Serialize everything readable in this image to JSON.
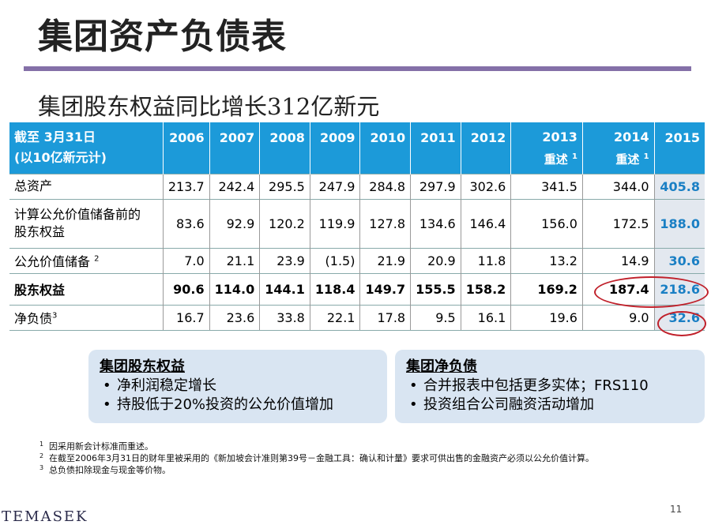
{
  "title": "集团资产负债表",
  "subtitle": "集团股东权益同比增长312亿新元",
  "table": {
    "header_label_line1": "截至 3月31日",
    "header_label_line2": "(以10亿新元计)",
    "years": [
      "2006",
      "2007",
      "2008",
      "2009",
      "2010",
      "2011",
      "2012",
      "2013",
      "2014",
      "2015"
    ],
    "restated_label": "重述",
    "restated_note": "1",
    "rows": [
      {
        "label": [
          "总资产"
        ],
        "values": [
          "213.7",
          "242.4",
          "295.5",
          "247.9",
          "284.8",
          "297.9",
          "302.6",
          "341.5",
          "344.0",
          "405.8"
        ]
      },
      {
        "label": [
          "计算公允价值储备前的",
          "股东权益"
        ],
        "values": [
          "83.6",
          "92.9",
          "120.2",
          "119.9",
          "127.8",
          "134.6",
          "146.4",
          "156.0",
          "172.5",
          "188.0"
        ]
      },
      {
        "label": [
          "公允价值储备"
        ],
        "note": "2",
        "values": [
          "7.0",
          "21.1",
          "23.9",
          "(1.5)",
          "21.9",
          "20.9",
          "11.8",
          "13.2",
          "14.9",
          "30.6"
        ]
      },
      {
        "label": [
          "股东权益"
        ],
        "values": [
          "90.6",
          "114.0",
          "144.1",
          "118.4",
          "149.7",
          "155.5",
          "158.2",
          "169.2",
          "187.4",
          "218.6"
        ]
      },
      {
        "label": [
          "净负债"
        ],
        "note": "3",
        "values": [
          "16.7",
          "23.6",
          "33.8",
          "22.1",
          "17.8",
          "9.5",
          "16.1",
          "19.6",
          "9.0",
          "32.6"
        ]
      }
    ]
  },
  "boxes": {
    "left": {
      "title": "集团股东权益",
      "items": [
        "净利润稳定增长",
        "持股低于20%投资的公允价值增加"
      ]
    },
    "right": {
      "title": "集团净负债",
      "items": [
        "合并报表中包括更多实体；FRS110",
        "投资组合公司融资活动增加"
      ]
    }
  },
  "footnotes": [
    {
      "n": "1",
      "text": "因采用新会计标准而重述。"
    },
    {
      "n": "2",
      "text": "在截至2006年3月31日的财年里被采用的《新加坡会计准则第39号－金融工具：确认和计量》要求可供出售的金融资产必须以公允价值计算。"
    },
    {
      "n": "3",
      "text": "总负债扣除现金与现金等价物。"
    }
  ],
  "logo": "TEMASEK",
  "page_number": "11",
  "colors": {
    "header_bg": "#1c9ad9",
    "accent_rule": "#8470a8",
    "highlight_col_bg": "#e3e8ef",
    "highlight_text": "#1a7fc4",
    "circle": "#c0202a",
    "box_bg": "#d9e5f2"
  }
}
